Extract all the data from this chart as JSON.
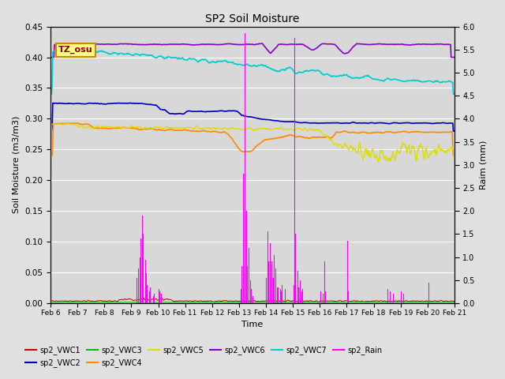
{
  "title": "SP2 Soil Moisture",
  "xlabel": "Time",
  "ylabel_left": "Soil Moisture (m3/m3)",
  "ylabel_right": "Raim (mm)",
  "ylim_left": [
    0,
    0.45
  ],
  "ylim_right": [
    0,
    6.0
  ],
  "fig_bg": "#e0e0e0",
  "plot_bg": "#d8d8d8",
  "grid_color": "#ffffff",
  "tz_label": "TZ_osu",
  "tz_box_facecolor": "#ffff88",
  "tz_box_edgecolor": "#cc8800",
  "tz_text_color": "#880000",
  "series_colors": {
    "sp2_VWC1": "#cc0000",
    "sp2_VWC2": "#0000bb",
    "sp2_VWC3": "#00bb00",
    "sp2_VWC4": "#ff8800",
    "sp2_VWC5": "#dddd00",
    "sp2_VWC6": "#8800cc",
    "sp2_VWC7": "#00cccc",
    "sp2_Rain": "#ff00ff"
  },
  "tick_labels": [
    "Feb 6",
    "Feb 7",
    "Feb 8",
    "Feb 9",
    "Feb 10",
    "Feb 11",
    "Feb 12",
    "Feb 13",
    "Feb 14",
    "Feb 15",
    "Feb 16",
    "Feb 17",
    "Feb 18",
    "Feb 19",
    "Feb 20",
    "Feb 21"
  ],
  "right_yticks": [
    0.0,
    0.5,
    1.0,
    1.5,
    2.0,
    2.5,
    3.0,
    3.5,
    4.0,
    4.5,
    5.0,
    5.5,
    6.0
  ],
  "right_yticklabels": [
    "0.0",
    "0.5",
    "1.0",
    "1.5",
    "2.0",
    "2.5",
    "3.0",
    "3.5",
    "4.0",
    "4.5",
    "5.0",
    "5.5",
    "6.0"
  ]
}
